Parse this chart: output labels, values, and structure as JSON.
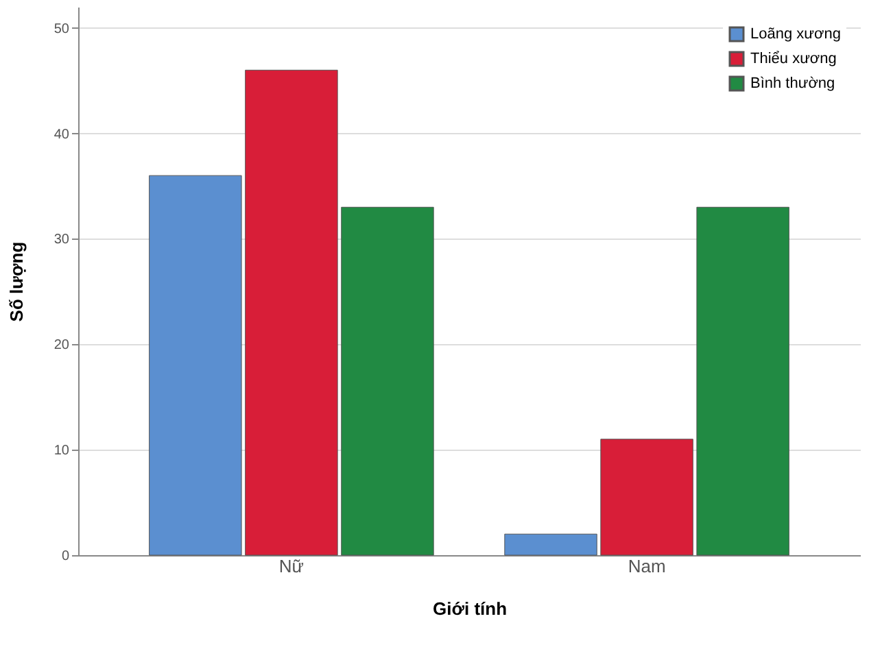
{
  "chart_data": {
    "type": "bar",
    "xlabel": "Giới tính",
    "ylabel": "Số lượng",
    "categories": [
      "Nữ",
      "Nam"
    ],
    "series": [
      {
        "name": "Loãng xương",
        "color": "#5b8fd0",
        "values": [
          36,
          2
        ]
      },
      {
        "name": "Thiểu xương",
        "color": "#d81e38",
        "values": [
          46,
          11
        ]
      },
      {
        "name": "Bình thường",
        "color": "#218a43",
        "values": [
          33,
          33
        ]
      }
    ],
    "ylim": [
      0,
      52
    ],
    "yticks": [
      0,
      10,
      20,
      30,
      40,
      50
    ],
    "grid": "y",
    "legend": "top right"
  }
}
